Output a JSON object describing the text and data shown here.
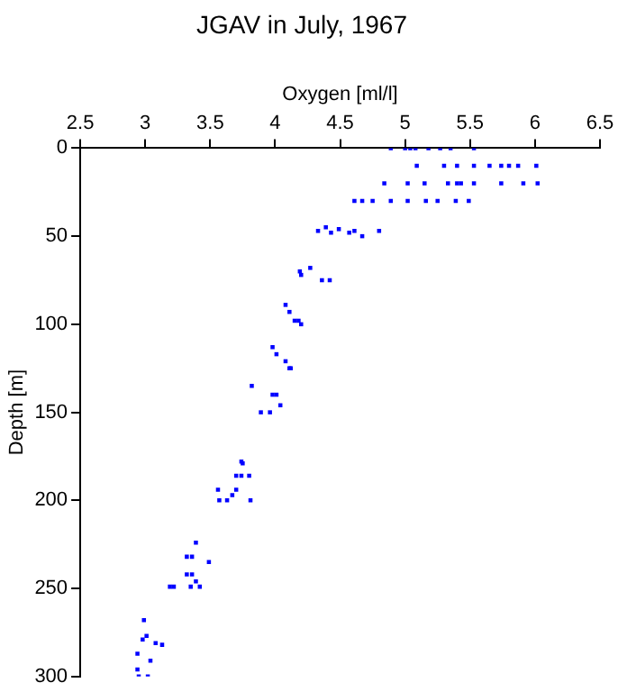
{
  "chart_data": {
    "type": "scatter",
    "title": "JGAV in July, 1967",
    "xlabel": "Oxygen [ml/l]",
    "ylabel": "Depth [m]",
    "xlim": [
      2.5,
      6.5
    ],
    "xticks": [
      2.5,
      3,
      3.5,
      4,
      4.5,
      5,
      5.5,
      6,
      6.5
    ],
    "ylim": [
      300,
      0
    ],
    "yticks": [
      0,
      50,
      100,
      150,
      200,
      250,
      300
    ],
    "grid": false,
    "legend": false,
    "marker": "square",
    "series": [
      {
        "color": "#0000ff",
        "x": [
          4.89,
          5.0,
          5.04,
          5.08,
          5.18,
          5.27,
          5.35,
          5.53,
          5.09,
          5.3,
          5.4,
          5.53,
          5.65,
          5.74,
          5.8,
          5.87,
          6.01,
          4.84,
          5.02,
          5.15,
          5.33,
          5.4,
          5.43,
          5.53,
          5.74,
          5.91,
          6.02,
          4.61,
          4.67,
          4.75,
          4.89,
          5.02,
          5.16,
          5.25,
          5.39,
          5.49,
          4.33,
          4.39,
          4.43,
          4.49,
          4.57,
          4.61,
          4.67,
          4.8,
          4.19,
          4.27,
          4.2,
          4.36,
          4.42,
          4.08,
          4.11,
          4.18,
          4.15,
          4.2,
          3.98,
          4.01,
          4.08,
          4.11,
          4.12,
          3.82,
          3.98,
          4.01,
          4.04,
          3.96,
          3.89,
          3.74,
          3.75,
          3.7,
          3.74,
          3.8,
          3.56,
          3.7,
          3.67,
          3.57,
          3.63,
          3.81,
          3.39,
          3.32,
          3.36,
          3.49,
          3.32,
          3.36,
          3.39,
          3.19,
          3.22,
          3.35,
          3.42,
          2.99,
          3.01,
          2.98,
          3.08,
          3.13,
          2.94,
          3.04,
          2.94,
          2.95,
          3.02
        ],
        "values": [
          0,
          0,
          0,
          0,
          0,
          0,
          0,
          0,
          10,
          10,
          10,
          10,
          10,
          10,
          10,
          10,
          10,
          20,
          20,
          20,
          20,
          20,
          20,
          20,
          20,
          20,
          20,
          30,
          30,
          30,
          30,
          30,
          30,
          30,
          30,
          30,
          47,
          45,
          48,
          46,
          48,
          47,
          50,
          47,
          70,
          68,
          72,
          75,
          75,
          89,
          93,
          98,
          98,
          100,
          113,
          117,
          121,
          125,
          125,
          135,
          140,
          140,
          146,
          150,
          150,
          178,
          179,
          186,
          186,
          186,
          194,
          194,
          197,
          200,
          200,
          200,
          224,
          232,
          232,
          235,
          242,
          242,
          246,
          249,
          249,
          249,
          249,
          268,
          277,
          279,
          281,
          282,
          287,
          291,
          296,
          300,
          300
        ]
      }
    ]
  }
}
